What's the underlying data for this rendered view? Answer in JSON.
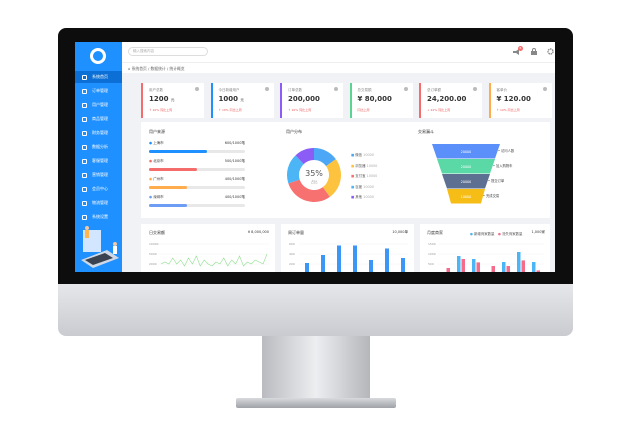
{
  "colors": {
    "primary": "#1e90ff",
    "blue": "#4c8df6",
    "red": "#f56c6c",
    "orange": "#ffac4c",
    "green": "#5ad394",
    "purple": "#8b5cf6"
  },
  "sidebar": {
    "items": [
      {
        "label": "系统首页",
        "icon": "home-icon"
      },
      {
        "label": "订单管理",
        "icon": "document-icon"
      },
      {
        "label": "用户管理",
        "icon": "user-icon"
      },
      {
        "label": "商品管理",
        "icon": "box-icon"
      },
      {
        "label": "财务管理",
        "icon": "wallet-icon"
      },
      {
        "label": "数据分析",
        "icon": "chart-icon"
      },
      {
        "label": "客服管理",
        "icon": "headset-icon"
      },
      {
        "label": "营销管理",
        "icon": "gift-icon"
      },
      {
        "label": "会员中心",
        "icon": "vip-icon"
      },
      {
        "label": "物流管理",
        "icon": "truck-icon"
      },
      {
        "label": "系统设置",
        "icon": "monitor-icon"
      }
    ]
  },
  "header": {
    "search_placeholder": "输入搜索内容",
    "notification_count": "6"
  },
  "breadcrumb": [
    "系统首页",
    "数据统计",
    "统计概览"
  ],
  "cards": [
    {
      "title": "用户总数",
      "value": "1200",
      "unit": "元",
      "sub": "↑ 10%  同比上周",
      "color": "#f56c6c"
    },
    {
      "title": "今日新增用户",
      "value": "1000",
      "unit": "元",
      "sub": "↑ 10%  同比上周",
      "color": "#1e90ff"
    },
    {
      "title": "订单总数",
      "value": "200,000",
      "unit": "",
      "sub": "↑ 10%  同比上周",
      "color": "#8b5cf6"
    },
    {
      "title": "总交易额",
      "value": "¥ 80,000",
      "unit": "",
      "sub": "同比上周",
      "color": "#5ad394"
    },
    {
      "title": "总订单额",
      "value": "24,200.00",
      "unit": "",
      "sub": "↓ 22%  同比上周",
      "color": "#f56c6c"
    },
    {
      "title": "客单价",
      "value": "¥ 120.00",
      "unit": "",
      "sub": "↑ 10%  同比上周",
      "color": "#ffac4c"
    }
  ],
  "user_source": {
    "title": "用户来源",
    "rows": [
      {
        "label": "上海市",
        "value": "600/1000笔",
        "pct": 60,
        "color": "#1e90ff"
      },
      {
        "label": "北京市",
        "value": "500/1000笔",
        "pct": 50,
        "color": "#f56c6c"
      },
      {
        "label": "广州市",
        "value": "400/1000笔",
        "pct": 40,
        "color": "#ffac4c"
      },
      {
        "label": "深圳市",
        "value": "400/1000笔",
        "pct": 40,
        "color": "#6d9cf5"
      }
    ]
  },
  "user_dist": {
    "title": "用户分布",
    "center_value": "35%",
    "center_label": "占比",
    "slices": [
      {
        "label": "微信",
        "value": "10000",
        "share": 15,
        "color": "#4ca7f6"
      },
      {
        "label": "浏览器",
        "value": "10000",
        "share": 25,
        "color": "#fdc33f"
      },
      {
        "label": "支付宝",
        "value": "10000",
        "share": 30,
        "color": "#f87171"
      },
      {
        "label": "百度",
        "value": "10000",
        "share": 18,
        "color": "#4cb5f5"
      },
      {
        "label": "其他",
        "value": "10000",
        "share": 12,
        "color": "#8b5cf6"
      }
    ]
  },
  "funnel": {
    "title": "交易漏斗",
    "stages": [
      {
        "value": "20000",
        "label": "访问人数",
        "color": "#5b8ff9"
      },
      {
        "value": "20000",
        "label": "加入购物车",
        "color": "#5ad8a6"
      },
      {
        "value": "20000",
        "label": "提交订单",
        "color": "#5d7092"
      },
      {
        "value": "10000",
        "label": "完成交易",
        "color": "#f6bd16"
      }
    ]
  },
  "daily": {
    "title": "日交易额",
    "total": "¥ 8,000,000",
    "yticks": [
      "10000",
      "5000",
      "2000"
    ],
    "values": [
      3,
      4,
      3,
      6,
      3,
      5,
      2,
      6,
      3,
      7,
      2,
      5,
      3,
      2,
      4,
      3,
      6,
      2,
      5,
      3,
      7,
      2,
      4,
      3,
      5,
      4,
      3,
      8
    ]
  },
  "weekly": {
    "title": "周订单量",
    "total": "10,000单",
    "yticks": [
      "600",
      "400",
      "200"
    ],
    "values": [
      220,
      380,
      570,
      570,
      280,
      510,
      320
    ]
  },
  "monthly": {
    "title": "月度商家",
    "legend": [
      "新增商家数量",
      "流失商家数量"
    ],
    "total": "1,000家",
    "yticks": [
      "1500",
      "1000",
      "500"
    ],
    "series": [
      [
        0,
        900,
        750,
        0,
        600,
        1100,
        600
      ],
      [
        300,
        750,
        580,
        400,
        400,
        680,
        180
      ]
    ]
  }
}
